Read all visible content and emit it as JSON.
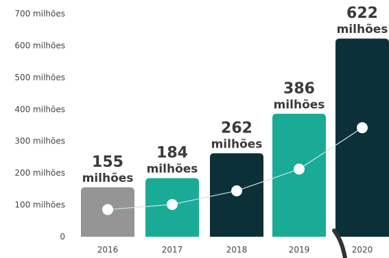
{
  "chart_data": {
    "type": "bar",
    "title": "",
    "xlabel": "",
    "ylabel": "",
    "categories": [
      "2016",
      "2017",
      "2018",
      "2019",
      "2020"
    ],
    "values": [
      155,
      184,
      262,
      386,
      622
    ],
    "value_labels": [
      {
        "number": "155",
        "unit": "milhões"
      },
      {
        "number": "184",
        "unit": "milhões"
      },
      {
        "number": "262",
        "unit": "milhões"
      },
      {
        "number": "386",
        "unit": "milhões"
      },
      {
        "number": "622",
        "unit": "milhões"
      }
    ],
    "ylim": [
      0,
      700
    ],
    "yticks": [
      {
        "value": 0,
        "label": "0"
      },
      {
        "value": 100,
        "label": "100 milhões"
      },
      {
        "value": 200,
        "label": "200 milhões"
      },
      {
        "value": 300,
        "label": "300 milhões"
      },
      {
        "value": 400,
        "label": "400 milhões"
      },
      {
        "value": 500,
        "label": "500 milhões"
      },
      {
        "value": 600,
        "label": "600 milhões"
      },
      {
        "value": 700,
        "label": "700 milhões"
      }
    ],
    "bar_colors": [
      "#959595",
      "#1aab96",
      "#0b3038",
      "#1aab96",
      "#0b3038"
    ],
    "marker_color": "#ffffff",
    "trend_line_color": "#cfe3e6",
    "grid": false
  }
}
